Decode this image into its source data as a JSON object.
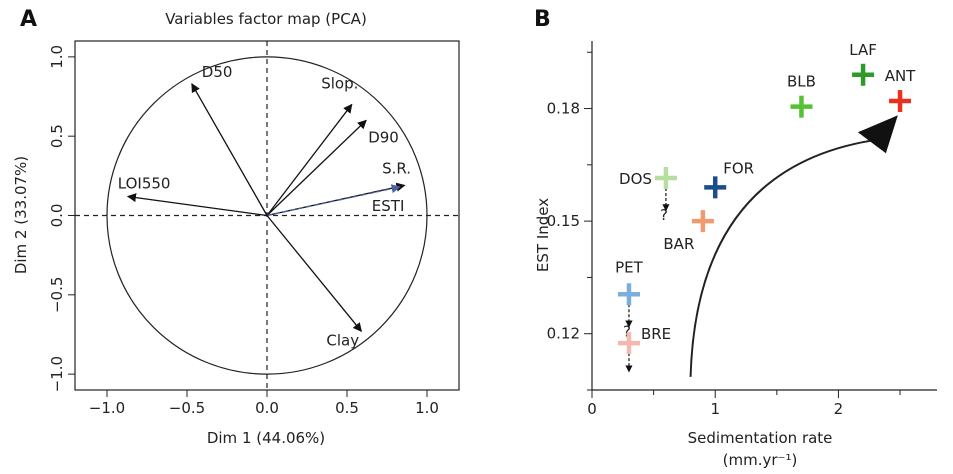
{
  "panel_a": {
    "letter": "A",
    "title": "Variables factor map (PCA)"
  },
  "panel_b": {
    "letter": "B"
  },
  "chart_data": [
    {
      "type": "scatter",
      "title": "Variables factor map (PCA)",
      "xlabel": "Dim 1 (44.06%)",
      "ylabel": "Dim 2 (33.07%)",
      "xlim": [
        -1.2,
        1.2
      ],
      "ylim": [
        -1.1,
        1.1
      ],
      "xticks": [
        -1.0,
        -0.5,
        0.0,
        0.5,
        1.0
      ],
      "xtick_labels": [
        "−1.0",
        "−0.5",
        "0.0",
        "0.5",
        "1.0"
      ],
      "yticks": [
        -1.0,
        -0.5,
        0.0,
        0.5,
        1.0
      ],
      "ytick_labels": [
        "−1.0",
        "−0.5",
        "0.0",
        "0.5",
        "1.0"
      ],
      "grid": false,
      "circle_radius": 1.0,
      "vectors": [
        {
          "name": "D50",
          "x": -0.47,
          "y": 0.83,
          "color": "#111111"
        },
        {
          "name": "Slop.",
          "x": 0.53,
          "y": 0.7,
          "color": "#111111"
        },
        {
          "name": "D90",
          "x": 0.62,
          "y": 0.6,
          "color": "#111111"
        },
        {
          "name": "S.R.",
          "x": 0.86,
          "y": 0.19,
          "color": "#111111"
        },
        {
          "name": "ESTI",
          "x": 0.83,
          "y": 0.18,
          "color": "#4a5fa8"
        },
        {
          "name": "LOI550",
          "x": -0.87,
          "y": 0.12,
          "color": "#111111"
        },
        {
          "name": "Clay",
          "x": 0.59,
          "y": -0.73,
          "color": "#111111"
        }
      ]
    },
    {
      "type": "scatter",
      "xlabel": "Sedimentation rate",
      "xlabel_unit": "(mm.yr⁻¹)",
      "ylabel": "EST Index",
      "xlim": [
        0,
        2.8
      ],
      "ylim": [
        0.105,
        0.198
      ],
      "xticks": [
        0,
        1,
        2
      ],
      "xtick_labels": [
        "0",
        "1",
        "2"
      ],
      "yticks": [
        0.12,
        0.15,
        0.18
      ],
      "ytick_labels": [
        "0.12",
        "0.15",
        "0.18"
      ],
      "grid": false,
      "points": [
        {
          "name": "ANT",
          "x": 2.5,
          "y": 0.182,
          "color": "#e8321e"
        },
        {
          "name": "LAF",
          "x": 2.2,
          "y": 0.189,
          "color": "#2e9a2a"
        },
        {
          "name": "BLB",
          "x": 1.7,
          "y": 0.1805,
          "color": "#55c234"
        },
        {
          "name": "FOR",
          "x": 1.0,
          "y": 0.159,
          "color": "#1c4e8c"
        },
        {
          "name": "BAR",
          "x": 0.9,
          "y": 0.15,
          "color": "#f09a70"
        },
        {
          "name": "DOS",
          "x": 0.6,
          "y": 0.1615,
          "color": "#b6dea0"
        },
        {
          "name": "PET",
          "x": 0.3,
          "y": 0.1305,
          "color": "#7aaedc"
        },
        {
          "name": "BRE",
          "x": 0.3,
          "y": 0.1175,
          "color": "#f5b8ae"
        }
      ],
      "question_marks": [
        "?",
        "?"
      ]
    }
  ]
}
